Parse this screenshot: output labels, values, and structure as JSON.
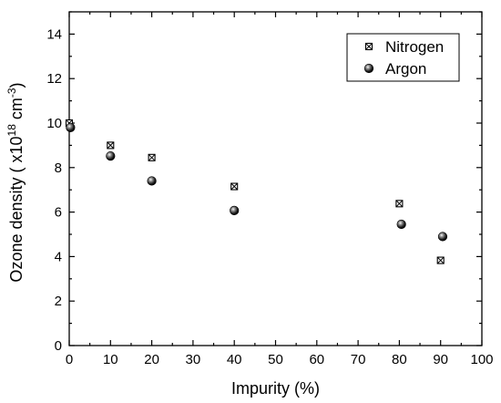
{
  "chart_data": {
    "type": "scatter",
    "xlabel": "Impurity (%)",
    "ylabel": {
      "prefix": "Ozone density ( x10",
      "exp1": "18",
      "middle": " cm",
      "exp2": "-3",
      "suffix": ")"
    },
    "xlim": [
      0,
      100
    ],
    "ylim": [
      0,
      15
    ],
    "x_ticks": [
      0,
      10,
      20,
      30,
      40,
      50,
      60,
      70,
      80,
      90,
      100
    ],
    "y_ticks": [
      0,
      2,
      4,
      6,
      8,
      10,
      12,
      14
    ],
    "grid": false,
    "legend_position": "top-right",
    "series": [
      {
        "name": "Nitrogen",
        "marker": "square-x",
        "color": "#000000",
        "points": [
          {
            "x": 0,
            "y": 10.0
          },
          {
            "x": 10,
            "y": 9.0
          },
          {
            "x": 20,
            "y": 8.45
          },
          {
            "x": 40,
            "y": 7.15
          },
          {
            "x": 80,
            "y": 6.38
          },
          {
            "x": 90,
            "y": 3.83
          }
        ]
      },
      {
        "name": "Argon",
        "marker": "sphere",
        "color": "#000000",
        "points": [
          {
            "x": 0.3,
            "y": 9.8
          },
          {
            "x": 10,
            "y": 8.52
          },
          {
            "x": 20,
            "y": 7.4
          },
          {
            "x": 40,
            "y": 6.07
          },
          {
            "x": 80.5,
            "y": 5.45
          },
          {
            "x": 90.5,
            "y": 4.9
          }
        ]
      }
    ]
  }
}
